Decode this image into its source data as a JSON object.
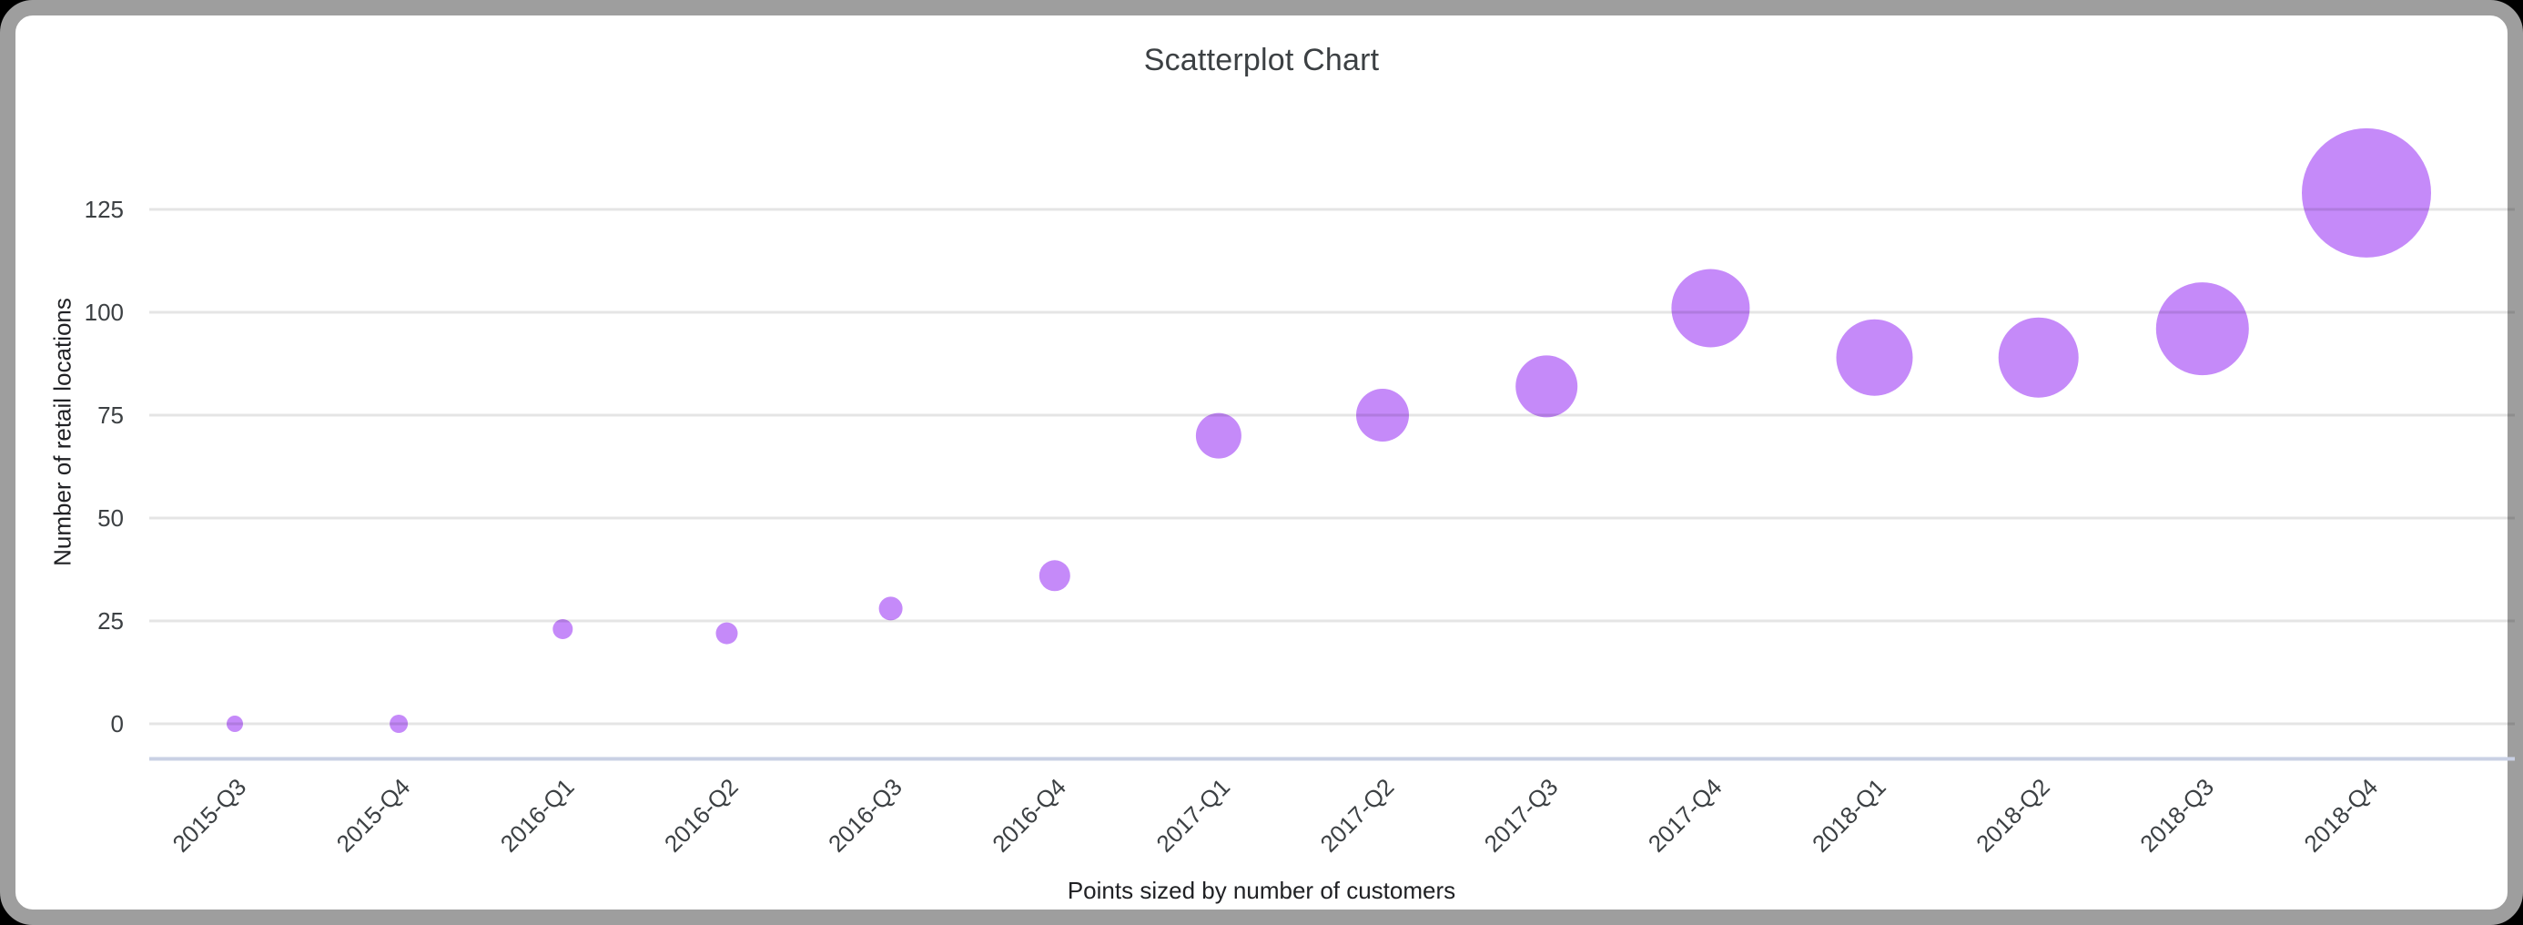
{
  "page": {
    "background_color": "#000000",
    "card_background": "#ffffff",
    "card_border_color": "#9e9e9e"
  },
  "chart": {
    "title": "Scatterplot Chart",
    "y_axis_title": "Number of retail locations",
    "caption": "Points sized by number of customers"
  },
  "chart_data": {
    "type": "scatter",
    "title": "Scatterplot Chart",
    "xlabel": "",
    "ylabel": "Number of retail locations",
    "annotation": "Points sized by number of customers",
    "categories": [
      "2015-Q3",
      "2015-Q4",
      "2016-Q1",
      "2016-Q2",
      "2016-Q3",
      "2016-Q4",
      "2017-Q1",
      "2017-Q2",
      "2017-Q3",
      "2017-Q4",
      "2018-Q1",
      "2018-Q2",
      "2018-Q3",
      "2018-Q4"
    ],
    "series": [
      {
        "name": "Number of retail locations",
        "values": [
          0,
          0,
          23,
          22,
          28,
          36,
          70,
          75,
          82,
          101,
          89,
          89,
          96,
          129
        ]
      }
    ],
    "point_radius_px": [
      9,
      10,
      11,
      12,
      13,
      17,
      25,
      29,
      34,
      43,
      42,
      44,
      51,
      71
    ],
    "size_encoding": "number of customers",
    "yticks": [
      0,
      25,
      50,
      75,
      100,
      125
    ],
    "ylim": [
      0,
      145
    ],
    "grid": true,
    "legend_position": "none",
    "x_tick_rotation_deg": 45,
    "point_color": "#c58af9",
    "gridline_color": "#e6e6e6",
    "baseline_color": "#c9d0e4",
    "text_color": "#3c4043"
  }
}
